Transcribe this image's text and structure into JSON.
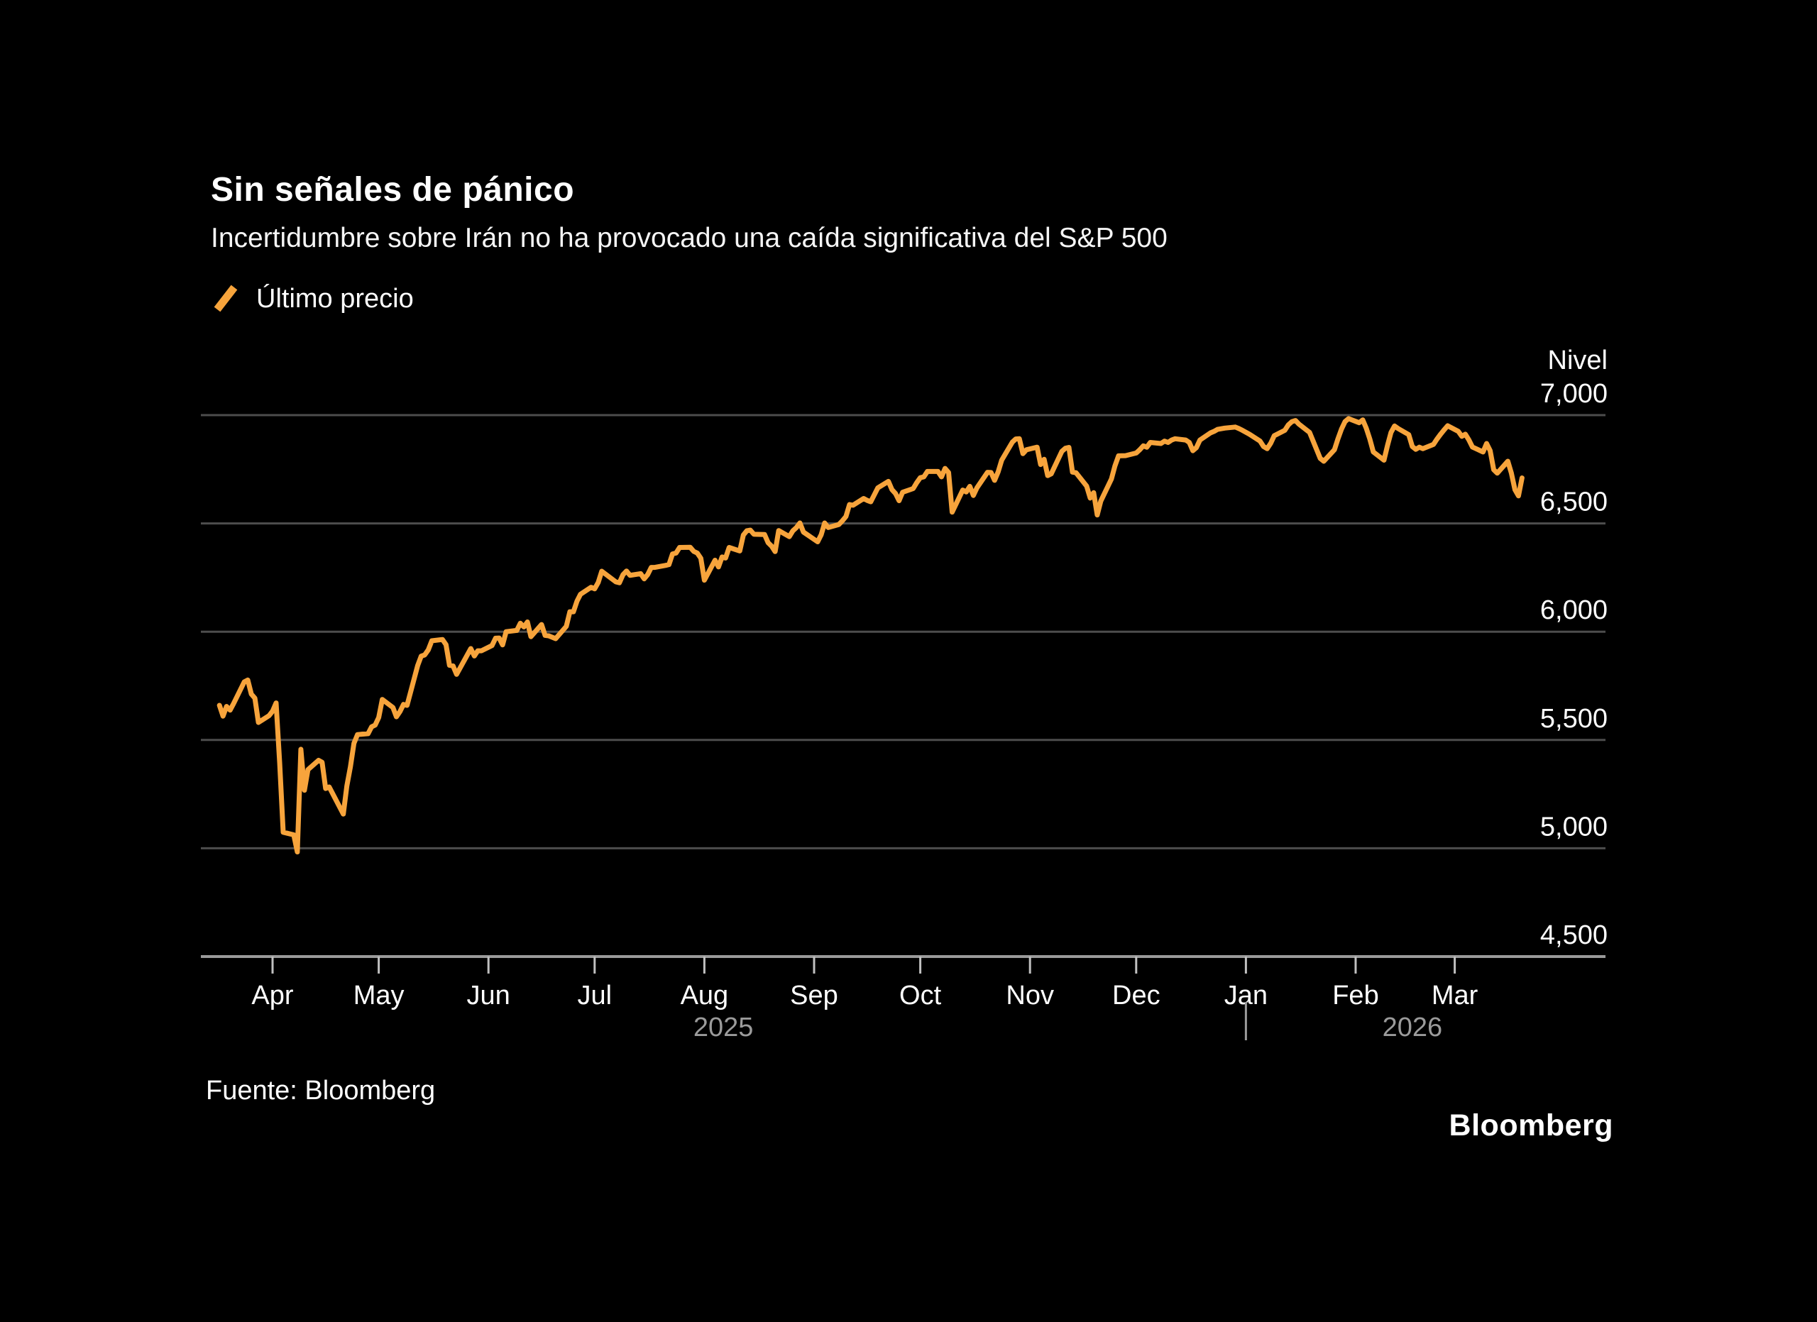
{
  "header": {
    "title": "Sin señales de pánico",
    "subtitle": "Incertidumbre sobre Irán no ha provocado una caída significativa del S&P 500"
  },
  "legend": {
    "label": "Último precio",
    "swatch_color": "#F7A43C"
  },
  "footer": {
    "source": "Fuente: Bloomberg",
    "brand": "Bloomberg"
  },
  "colors": {
    "background": "#000000",
    "line": "#F7A43C",
    "gridline": "#4d4d4d",
    "axis_line": "#9a9a9a",
    "tick": "#c0c0c0",
    "text": "#ffffff",
    "year_text": "#9b9b9b"
  },
  "chart_data": {
    "type": "line",
    "title": "Sin señales de pánico",
    "subtitle": "Incertidumbre sobre Irán no ha provocado una caída significativa del S&P 500",
    "xlabel": "",
    "ylabel": "Nivel",
    "ylim": [
      4500,
      7000
    ],
    "grid": true,
    "legend_position": "top-left",
    "y_ticks": [
      {
        "value": 7000,
        "label": "7,000"
      },
      {
        "value": 6500,
        "label": "6,500"
      },
      {
        "value": 6000,
        "label": "6,000"
      },
      {
        "value": 5500,
        "label": "5,500"
      },
      {
        "value": 5000,
        "label": "5,000"
      },
      {
        "value": 4500,
        "label": "4,500"
      }
    ],
    "x_months": [
      "Apr",
      "May",
      "Jun",
      "Jul",
      "Aug",
      "Sep",
      "Oct",
      "Nov",
      "Dec",
      "Jan",
      "Feb",
      "Mar"
    ],
    "year_labels": [
      "2025",
      "2026"
    ],
    "year_separator": "|",
    "series": [
      {
        "name": "Último precio",
        "color": "#F7A43C",
        "points": [
          [
            "2025-03-17",
            5660
          ],
          [
            "2025-03-18",
            5610
          ],
          [
            "2025-03-19",
            5655
          ],
          [
            "2025-03-20",
            5638
          ],
          [
            "2025-03-21",
            5668
          ],
          [
            "2025-03-24",
            5768
          ],
          [
            "2025-03-25",
            5777
          ],
          [
            "2025-03-26",
            5712
          ],
          [
            "2025-03-27",
            5693
          ],
          [
            "2025-03-28",
            5581
          ],
          [
            "2025-03-31",
            5612
          ],
          [
            "2025-04-01",
            5633
          ],
          [
            "2025-04-02",
            5671
          ],
          [
            "2025-04-03",
            5396
          ],
          [
            "2025-04-04",
            5074
          ],
          [
            "2025-04-07",
            5062
          ],
          [
            "2025-04-08",
            4983
          ],
          [
            "2025-04-09",
            5457
          ],
          [
            "2025-04-10",
            5268
          ],
          [
            "2025-04-11",
            5363
          ],
          [
            "2025-04-14",
            5406
          ],
          [
            "2025-04-15",
            5397
          ],
          [
            "2025-04-16",
            5276
          ],
          [
            "2025-04-17",
            5283
          ],
          [
            "2025-04-21",
            5158
          ],
          [
            "2025-04-22",
            5288
          ],
          [
            "2025-04-23",
            5376
          ],
          [
            "2025-04-24",
            5485
          ],
          [
            "2025-04-25",
            5525
          ],
          [
            "2025-04-28",
            5529
          ],
          [
            "2025-04-29",
            5561
          ],
          [
            "2025-04-30",
            5569
          ],
          [
            "2025-05-01",
            5604
          ],
          [
            "2025-05-02",
            5687
          ],
          [
            "2025-05-05",
            5650
          ],
          [
            "2025-05-06",
            5607
          ],
          [
            "2025-05-07",
            5631
          ],
          [
            "2025-05-08",
            5664
          ],
          [
            "2025-05-09",
            5660
          ],
          [
            "2025-05-12",
            5844
          ],
          [
            "2025-05-13",
            5887
          ],
          [
            "2025-05-14",
            5893
          ],
          [
            "2025-05-15",
            5916
          ],
          [
            "2025-05-16",
            5958
          ],
          [
            "2025-05-19",
            5964
          ],
          [
            "2025-05-20",
            5940
          ],
          [
            "2025-05-21",
            5845
          ],
          [
            "2025-05-22",
            5842
          ],
          [
            "2025-05-23",
            5803
          ],
          [
            "2025-05-27",
            5922
          ],
          [
            "2025-05-28",
            5888
          ],
          [
            "2025-05-29",
            5912
          ],
          [
            "2025-05-30",
            5912
          ],
          [
            "2025-06-02",
            5936
          ],
          [
            "2025-06-03",
            5970
          ],
          [
            "2025-06-04",
            5971
          ],
          [
            "2025-06-05",
            5939
          ],
          [
            "2025-06-06",
            6000
          ],
          [
            "2025-06-09",
            6006
          ],
          [
            "2025-06-10",
            6039
          ],
          [
            "2025-06-11",
            6022
          ],
          [
            "2025-06-12",
            6045
          ],
          [
            "2025-06-13",
            5977
          ],
          [
            "2025-06-16",
            6033
          ],
          [
            "2025-06-17",
            5983
          ],
          [
            "2025-06-18",
            5981
          ],
          [
            "2025-06-20",
            5968
          ],
          [
            "2025-06-23",
            6025
          ],
          [
            "2025-06-24",
            6092
          ],
          [
            "2025-06-25",
            6092
          ],
          [
            "2025-06-26",
            6141
          ],
          [
            "2025-06-27",
            6173
          ],
          [
            "2025-06-30",
            6205
          ],
          [
            "2025-07-01",
            6198
          ],
          [
            "2025-07-02",
            6227
          ],
          [
            "2025-07-03",
            6279
          ],
          [
            "2025-07-07",
            6230
          ],
          [
            "2025-07-08",
            6226
          ],
          [
            "2025-07-09",
            6263
          ],
          [
            "2025-07-10",
            6280
          ],
          [
            "2025-07-11",
            6260
          ],
          [
            "2025-07-14",
            6268
          ],
          [
            "2025-07-15",
            6244
          ],
          [
            "2025-07-16",
            6264
          ],
          [
            "2025-07-17",
            6297
          ],
          [
            "2025-07-18",
            6297
          ],
          [
            "2025-07-21",
            6306
          ],
          [
            "2025-07-22",
            6310
          ],
          [
            "2025-07-23",
            6359
          ],
          [
            "2025-07-24",
            6363
          ],
          [
            "2025-07-25",
            6389
          ],
          [
            "2025-07-28",
            6390
          ],
          [
            "2025-07-29",
            6371
          ],
          [
            "2025-07-30",
            6363
          ],
          [
            "2025-07-31",
            6339
          ],
          [
            "2025-08-01",
            6238
          ],
          [
            "2025-08-04",
            6330
          ],
          [
            "2025-08-05",
            6299
          ],
          [
            "2025-08-06",
            6345
          ],
          [
            "2025-08-07",
            6340
          ],
          [
            "2025-08-08",
            6389
          ],
          [
            "2025-08-11",
            6373
          ],
          [
            "2025-08-12",
            6446
          ],
          [
            "2025-08-13",
            6466
          ],
          [
            "2025-08-14",
            6469
          ],
          [
            "2025-08-15",
            6450
          ],
          [
            "2025-08-18",
            6449
          ],
          [
            "2025-08-19",
            6411
          ],
          [
            "2025-08-20",
            6395
          ],
          [
            "2025-08-21",
            6370
          ],
          [
            "2025-08-22",
            6467
          ],
          [
            "2025-08-25",
            6439
          ],
          [
            "2025-08-26",
            6466
          ],
          [
            "2025-08-27",
            6481
          ],
          [
            "2025-08-28",
            6502
          ],
          [
            "2025-08-29",
            6460
          ],
          [
            "2025-09-02",
            6415
          ],
          [
            "2025-09-03",
            6448
          ],
          [
            "2025-09-04",
            6502
          ],
          [
            "2025-09-05",
            6481
          ],
          [
            "2025-09-08",
            6495
          ],
          [
            "2025-09-09",
            6512
          ],
          [
            "2025-09-10",
            6532
          ],
          [
            "2025-09-11",
            6587
          ],
          [
            "2025-09-12",
            6584
          ],
          [
            "2025-09-15",
            6615
          ],
          [
            "2025-09-16",
            6606
          ],
          [
            "2025-09-17",
            6600
          ],
          [
            "2025-09-18",
            6632
          ],
          [
            "2025-09-19",
            6664
          ],
          [
            "2025-09-22",
            6694
          ],
          [
            "2025-09-23",
            6656
          ],
          [
            "2025-09-24",
            6638
          ],
          [
            "2025-09-25",
            6605
          ],
          [
            "2025-09-26",
            6644
          ],
          [
            "2025-09-29",
            6661
          ],
          [
            "2025-09-30",
            6688
          ],
          [
            "2025-10-01",
            6711
          ],
          [
            "2025-10-02",
            6715
          ],
          [
            "2025-10-03",
            6740
          ],
          [
            "2025-10-06",
            6740
          ],
          [
            "2025-10-07",
            6715
          ],
          [
            "2025-10-08",
            6754
          ],
          [
            "2025-10-09",
            6735
          ],
          [
            "2025-10-10",
            6552
          ],
          [
            "2025-10-13",
            6654
          ],
          [
            "2025-10-14",
            6645
          ],
          [
            "2025-10-15",
            6671
          ],
          [
            "2025-10-16",
            6629
          ],
          [
            "2025-10-17",
            6664
          ],
          [
            "2025-10-20",
            6736
          ],
          [
            "2025-10-21",
            6735
          ],
          [
            "2025-10-22",
            6699
          ],
          [
            "2025-10-23",
            6738
          ],
          [
            "2025-10-24",
            6792
          ],
          [
            "2025-10-27",
            6875
          ],
          [
            "2025-10-28",
            6890
          ],
          [
            "2025-10-29",
            6891
          ],
          [
            "2025-10-30",
            6822
          ],
          [
            "2025-10-31",
            6840
          ],
          [
            "2025-11-03",
            6852
          ],
          [
            "2025-11-04",
            6772
          ],
          [
            "2025-11-05",
            6796
          ],
          [
            "2025-11-06",
            6721
          ],
          [
            "2025-11-07",
            6729
          ],
          [
            "2025-11-10",
            6833
          ],
          [
            "2025-11-11",
            6847
          ],
          [
            "2025-11-12",
            6851
          ],
          [
            "2025-11-13",
            6737
          ],
          [
            "2025-11-14",
            6734
          ],
          [
            "2025-11-17",
            6672
          ],
          [
            "2025-11-18",
            6617
          ],
          [
            "2025-11-19",
            6642
          ],
          [
            "2025-11-20",
            6539
          ],
          [
            "2025-11-21",
            6603
          ],
          [
            "2025-11-24",
            6705
          ],
          [
            "2025-11-25",
            6766
          ],
          [
            "2025-11-26",
            6812
          ],
          [
            "2025-11-28",
            6813
          ],
          [
            "2025-12-01",
            6825
          ],
          [
            "2025-12-02",
            6840
          ],
          [
            "2025-12-03",
            6858
          ],
          [
            "2025-12-04",
            6852
          ],
          [
            "2025-12-05",
            6874
          ],
          [
            "2025-12-08",
            6869
          ],
          [
            "2025-12-09",
            6880
          ],
          [
            "2025-12-10",
            6874
          ],
          [
            "2025-12-11",
            6885
          ],
          [
            "2025-12-12",
            6891
          ],
          [
            "2025-12-15",
            6885
          ],
          [
            "2025-12-16",
            6874
          ],
          [
            "2025-12-17",
            6836
          ],
          [
            "2025-12-18",
            6850
          ],
          [
            "2025-12-19",
            6885
          ],
          [
            "2025-12-22",
            6918
          ],
          [
            "2025-12-23",
            6925
          ],
          [
            "2025-12-24",
            6934
          ],
          [
            "2025-12-26",
            6940
          ],
          [
            "2025-12-29",
            6945
          ],
          [
            "2025-12-30",
            6938
          ],
          [
            "2025-12-31",
            6930
          ],
          [
            "2026-01-02",
            6912
          ],
          [
            "2026-01-05",
            6880
          ],
          [
            "2026-01-06",
            6855
          ],
          [
            "2026-01-07",
            6845
          ],
          [
            "2026-01-08",
            6870
          ],
          [
            "2026-01-09",
            6905
          ],
          [
            "2026-01-12",
            6930
          ],
          [
            "2026-01-13",
            6955
          ],
          [
            "2026-01-14",
            6970
          ],
          [
            "2026-01-15",
            6975
          ],
          [
            "2026-01-16",
            6958
          ],
          [
            "2026-01-19",
            6920
          ],
          [
            "2026-01-20",
            6880
          ],
          [
            "2026-01-21",
            6840
          ],
          [
            "2026-01-22",
            6800
          ],
          [
            "2026-01-23",
            6787
          ],
          [
            "2026-01-26",
            6840
          ],
          [
            "2026-01-27",
            6890
          ],
          [
            "2026-01-28",
            6935
          ],
          [
            "2026-01-29",
            6970
          ],
          [
            "2026-01-30",
            6984
          ],
          [
            "2026-02-02",
            6965
          ],
          [
            "2026-02-03",
            6978
          ],
          [
            "2026-02-04",
            6940
          ],
          [
            "2026-02-05",
            6890
          ],
          [
            "2026-02-06",
            6830
          ],
          [
            "2026-02-09",
            6792
          ],
          [
            "2026-02-10",
            6860
          ],
          [
            "2026-02-11",
            6920
          ],
          [
            "2026-02-12",
            6950
          ],
          [
            "2026-02-13",
            6938
          ],
          [
            "2026-02-16",
            6910
          ],
          [
            "2026-02-17",
            6855
          ],
          [
            "2026-02-18",
            6842
          ],
          [
            "2026-02-19",
            6852
          ],
          [
            "2026-02-20",
            6845
          ],
          [
            "2026-02-23",
            6865
          ],
          [
            "2026-02-24",
            6890
          ],
          [
            "2026-02-25",
            6912
          ],
          [
            "2026-02-26",
            6932
          ],
          [
            "2026-02-27",
            6951
          ],
          [
            "2026-03-02",
            6925
          ],
          [
            "2026-03-03",
            6902
          ],
          [
            "2026-03-04",
            6912
          ],
          [
            "2026-03-05",
            6885
          ],
          [
            "2026-03-06",
            6853
          ],
          [
            "2026-03-09",
            6830
          ],
          [
            "2026-03-10",
            6869
          ],
          [
            "2026-03-11",
            6836
          ],
          [
            "2026-03-12",
            6748
          ],
          [
            "2026-03-13",
            6732
          ],
          [
            "2026-03-16",
            6787
          ],
          [
            "2026-03-17",
            6732
          ],
          [
            "2026-03-18",
            6656
          ],
          [
            "2026-03-19",
            6627
          ],
          [
            "2026-03-20",
            6710
          ]
        ]
      }
    ]
  }
}
